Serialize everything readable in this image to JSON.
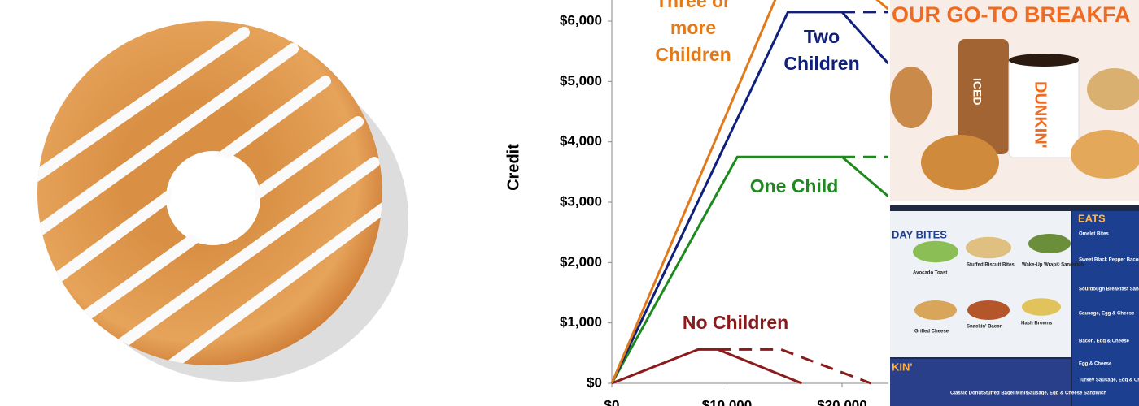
{
  "chart_data": {
    "type": "line",
    "y_label": "Credit",
    "xlim": [
      0,
      24000
    ],
    "ylim": [
      0,
      6350
    ],
    "xticks": [
      {
        "value": 0,
        "label": "$0"
      },
      {
        "value": 10000,
        "label": "$10,000"
      },
      {
        "value": 20000,
        "label": "$20,000"
      }
    ],
    "yticks": [
      {
        "value": 0,
        "label": "$0"
      },
      {
        "value": 1000,
        "label": "$1,000"
      },
      {
        "value": 2000,
        "label": "$2,000"
      },
      {
        "value": 3000,
        "label": "$3,000"
      },
      {
        "value": 4000,
        "label": "$4,000"
      },
      {
        "value": 5000,
        "label": "$5,000"
      },
      {
        "value": 6000,
        "label": "$6,000"
      }
    ],
    "series": [
      {
        "label": [
          "No Children"
        ],
        "color": "#8b1a1a",
        "x": [
          0,
          7500,
          9200,
          16500
        ],
        "values": [
          0,
          560,
          560,
          0
        ],
        "dash_x": [
          9200,
          14700,
          22500
        ],
        "dash_values": [
          560,
          560,
          0
        ]
      },
      {
        "label": [
          "One Child"
        ],
        "color": "#1e8a1e",
        "x": [
          0,
          10900,
          20000,
          24000
        ],
        "values": [
          0,
          3750,
          3750,
          3100
        ],
        "dash_x": [
          20000,
          24000
        ],
        "dash_values": [
          3750,
          3750
        ]
      },
      {
        "label": [
          "Two",
          "Children"
        ],
        "color": "#0f1f7a",
        "x": [
          0,
          15300,
          20000,
          24000
        ],
        "values": [
          0,
          6150,
          6150,
          5300
        ],
        "dash_x": [
          20000,
          24000
        ],
        "dash_values": [
          6150,
          6150
        ]
      },
      {
        "label": [
          "Three or",
          "more",
          "Children"
        ],
        "color": "#e07a1a",
        "x": [
          0,
          15300,
          20000,
          24000
        ],
        "values": [
          0,
          6850,
          6850,
          6200
        ]
      }
    ]
  },
  "menu": {
    "banner": "OUR GO-TO BREAKFA",
    "cup_brand": "DUNKIN'",
    "cup_iced": "ICED",
    "sections": [
      "DAY BITES",
      "EATS",
      "KIN'"
    ],
    "items": [
      "Avocado Toast",
      "Stuffed Biscuit Bites",
      "Wake-Up Wrap® Sandwich",
      "Grilled Cheese",
      "Snackin' Bacon",
      "Hash Browns",
      "Omelet Bites",
      "Sweet Black Pepper Bacon Sandwich",
      "Sourdough Breakfast Sandwich",
      "Sausage, Egg & Cheese",
      "Bacon, Egg & Cheese",
      "Egg & Cheese",
      "Turkey Sausage, Egg & Cheese English Muffin",
      "Classic Donut",
      "Stuffed Bagel Minis",
      "Sausage, Egg & Cheese Sandwich"
    ]
  }
}
